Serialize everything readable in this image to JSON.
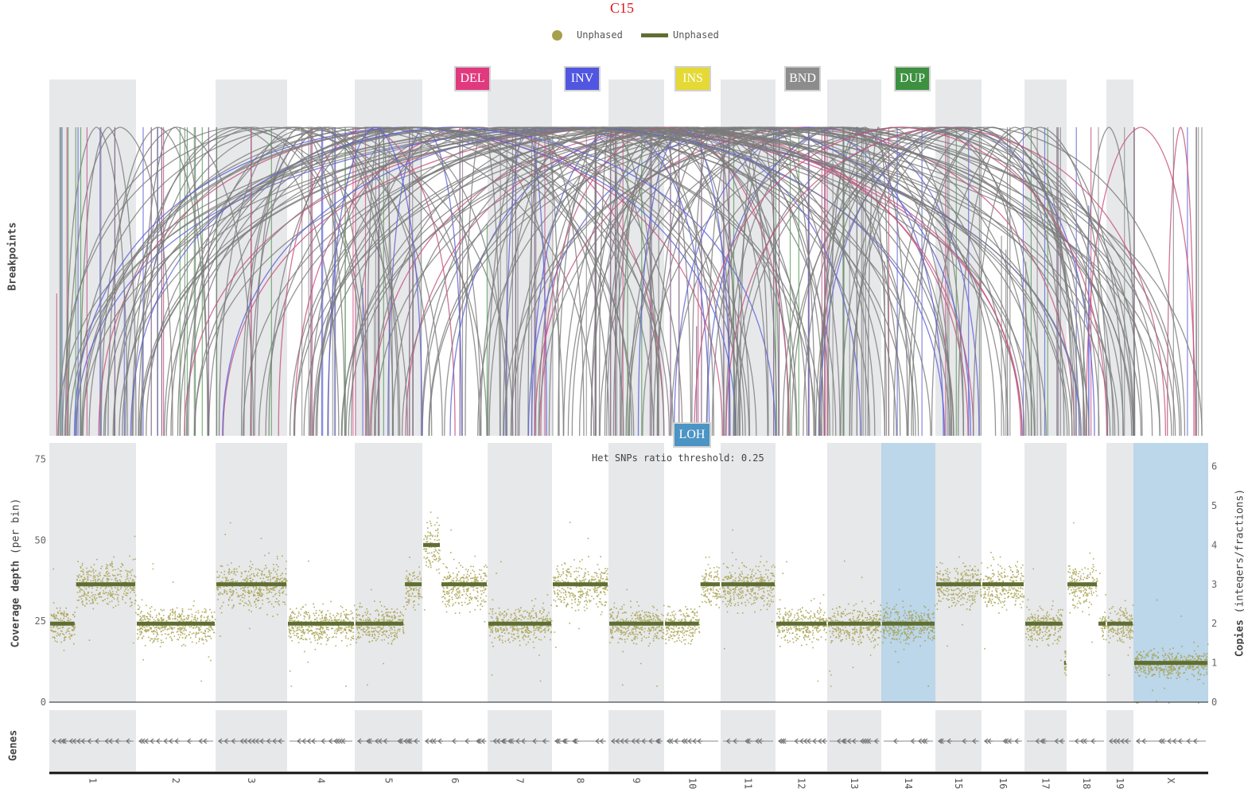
{
  "title": "C15",
  "legend": {
    "points_label": "Unphased",
    "line_label": "Unphased",
    "points_color": "#a5a04a",
    "line_color": "#5f6e32"
  },
  "sv_types": [
    {
      "label": "DEL",
      "color": "#e0397e"
    },
    {
      "label": "INV",
      "color": "#5156e0"
    },
    {
      "label": "INS",
      "color": "#e4d935"
    },
    {
      "label": "BND",
      "color": "#8c8c8c"
    },
    {
      "label": "DUP",
      "color": "#3d9040"
    }
  ],
  "loh": {
    "label": "LOH",
    "color": "#4b94c4"
  },
  "threshold_text": "Het SNPs ratio threshold: 0.25",
  "axes": {
    "breakpoints_title": "Breakpoints",
    "coverage_title_bold": "Coverage depth",
    "coverage_title_rest": " (per bin)",
    "copies_title_bold": "Copies",
    "copies_title_rest": " (integers/fractions)",
    "genes_title": "Genes"
  },
  "chart_data": {
    "type": "scatter",
    "title": "C15",
    "y_left": {
      "label": "Coverage depth (per bin)",
      "ticks": [
        0,
        25,
        50,
        75
      ],
      "range": [
        0,
        80
      ]
    },
    "y_right": {
      "label": "Copies (integers/fractions)",
      "ticks": [
        0,
        1,
        2,
        3,
        4,
        5,
        6
      ],
      "range": [
        0,
        6.6
      ]
    },
    "chromosomes": [
      {
        "name": "1",
        "shaded": true,
        "loh": false,
        "segments": [
          {
            "from": 0.0,
            "to": 0.3,
            "copies": 2
          },
          {
            "from": 0.3,
            "to": 1.0,
            "copies": 3
          }
        ]
      },
      {
        "name": "2",
        "shaded": false,
        "loh": false,
        "segments": [
          {
            "from": 0.0,
            "to": 1.0,
            "copies": 2
          }
        ]
      },
      {
        "name": "3",
        "shaded": true,
        "loh": false,
        "segments": [
          {
            "from": 0.0,
            "to": 1.0,
            "copies": 3
          }
        ]
      },
      {
        "name": "4",
        "shaded": false,
        "loh": false,
        "segments": [
          {
            "from": 0.0,
            "to": 1.0,
            "copies": 2
          }
        ]
      },
      {
        "name": "5",
        "shaded": true,
        "loh": false,
        "segments": [
          {
            "from": 0.0,
            "to": 0.73,
            "copies": 2
          },
          {
            "from": 0.73,
            "to": 1.0,
            "copies": 3
          }
        ]
      },
      {
        "name": "6",
        "shaded": false,
        "loh": false,
        "segments": [
          {
            "from": 0.0,
            "to": 0.28,
            "copies": 4
          },
          {
            "from": 0.28,
            "to": 1.0,
            "copies": 3
          }
        ]
      },
      {
        "name": "7",
        "shaded": true,
        "loh": false,
        "segments": [
          {
            "from": 0.0,
            "to": 1.0,
            "copies": 2
          }
        ]
      },
      {
        "name": "8",
        "shaded": false,
        "loh": false,
        "segments": [
          {
            "from": 0.0,
            "to": 1.0,
            "copies": 3
          }
        ]
      },
      {
        "name": "9",
        "shaded": true,
        "loh": false,
        "segments": [
          {
            "from": 0.0,
            "to": 1.0,
            "copies": 2
          }
        ]
      },
      {
        "name": "10",
        "shaded": false,
        "loh": false,
        "segments": [
          {
            "from": 0.0,
            "to": 0.63,
            "copies": 2
          },
          {
            "from": 0.63,
            "to": 1.0,
            "copies": 3
          }
        ]
      },
      {
        "name": "11",
        "shaded": true,
        "loh": false,
        "segments": [
          {
            "from": 0.0,
            "to": 1.0,
            "copies": 3
          }
        ]
      },
      {
        "name": "12",
        "shaded": false,
        "loh": false,
        "segments": [
          {
            "from": 0.0,
            "to": 1.0,
            "copies": 2
          }
        ]
      },
      {
        "name": "13",
        "shaded": true,
        "loh": false,
        "segments": [
          {
            "from": 0.0,
            "to": 1.0,
            "copies": 2
          }
        ]
      },
      {
        "name": "14",
        "shaded": false,
        "loh": true,
        "segments": [
          {
            "from": 0.0,
            "to": 1.0,
            "copies": 2
          }
        ]
      },
      {
        "name": "15",
        "shaded": true,
        "loh": false,
        "segments": [
          {
            "from": 0.0,
            "to": 1.0,
            "copies": 3
          }
        ]
      },
      {
        "name": "16",
        "shaded": false,
        "loh": false,
        "segments": [
          {
            "from": 0.0,
            "to": 1.0,
            "copies": 3
          }
        ]
      },
      {
        "name": "17",
        "shaded": true,
        "loh": false,
        "segments": [
          {
            "from": 0.0,
            "to": 0.92,
            "copies": 2
          },
          {
            "from": 0.92,
            "to": 1.0,
            "copies": 1
          }
        ]
      },
      {
        "name": "18",
        "shaded": false,
        "loh": false,
        "segments": [
          {
            "from": 0.0,
            "to": 0.78,
            "copies": 3
          },
          {
            "from": 0.78,
            "to": 1.0,
            "copies": 2
          }
        ]
      },
      {
        "name": "19",
        "shaded": true,
        "loh": false,
        "segments": [
          {
            "from": 0.0,
            "to": 1.0,
            "copies": 2
          }
        ]
      },
      {
        "name": "X",
        "shaded": false,
        "loh": true,
        "segments": [
          {
            "from": 0.0,
            "to": 1.0,
            "copies": 1
          }
        ]
      }
    ]
  }
}
